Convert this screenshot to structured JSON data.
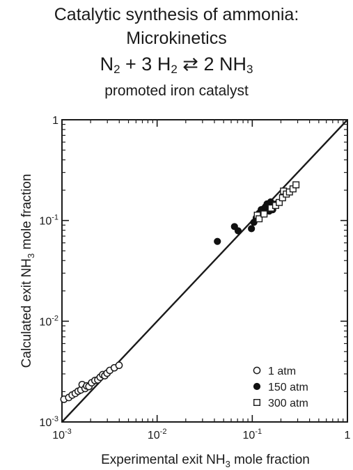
{
  "header": {
    "title_line1": "Catalytic synthesis of ammonia:",
    "title_line2": "Microkinetics",
    "equation": {
      "n2": "N",
      "n2_sub": "2",
      "plus": " + 3 H",
      "h2_sub": "2",
      "arrow": " ⇄ ",
      "nh3": "2 NH",
      "nh3_sub": "3"
    },
    "subtitle": "promoted iron catalyst"
  },
  "chart_data": {
    "type": "scatter",
    "log_x": true,
    "log_y": true,
    "xlim": [
      0.001,
      1
    ],
    "ylim": [
      0.001,
      1
    ],
    "x_ticks": [
      {
        "value": 0.001,
        "base": "10",
        "exp": "-3"
      },
      {
        "value": 0.01,
        "base": "10",
        "exp": "-2"
      },
      {
        "value": 0.1,
        "base": "10",
        "exp": "-1"
      },
      {
        "value": 1,
        "base": "1",
        "exp": ""
      }
    ],
    "y_ticks": [
      {
        "value": 0.001,
        "base": "10",
        "exp": "-3"
      },
      {
        "value": 0.01,
        "base": "10",
        "exp": "-2"
      },
      {
        "value": 0.1,
        "base": "10",
        "exp": "-1"
      },
      {
        "value": 1,
        "base": "1",
        "exp": ""
      }
    ],
    "xlabel_pre": "Experimental exit NH",
    "xlabel_sub": "3",
    "xlabel_post": " mole fraction",
    "ylabel_pre": "Calculated exit NH",
    "ylabel_sub": "3",
    "ylabel_post": " mole fraction",
    "diagonal": {
      "x": [
        0.001,
        1
      ],
      "y": [
        0.001,
        1
      ]
    },
    "legend_position": "bottom-right",
    "series": [
      {
        "name": "1 atm",
        "marker": "open-circle",
        "points": [
          [
            0.00105,
            0.00168
          ],
          [
            0.00118,
            0.00175
          ],
          [
            0.00128,
            0.00185
          ],
          [
            0.00138,
            0.00192
          ],
          [
            0.00148,
            0.00202
          ],
          [
            0.00158,
            0.00208
          ],
          [
            0.00163,
            0.00235
          ],
          [
            0.00175,
            0.00215
          ],
          [
            0.00182,
            0.00228
          ],
          [
            0.00192,
            0.00225
          ],
          [
            0.00205,
            0.00245
          ],
          [
            0.00222,
            0.00258
          ],
          [
            0.00238,
            0.00262
          ],
          [
            0.00252,
            0.00278
          ],
          [
            0.00268,
            0.00295
          ],
          [
            0.00282,
            0.00288
          ],
          [
            0.00298,
            0.00305
          ],
          [
            0.00318,
            0.00325
          ],
          [
            0.00355,
            0.00345
          ],
          [
            0.00398,
            0.00365
          ]
        ]
      },
      {
        "name": "150 atm",
        "marker": "filled-circle",
        "points": [
          [
            0.043,
            0.062
          ],
          [
            0.065,
            0.087
          ],
          [
            0.071,
            0.079
          ],
          [
            0.098,
            0.083
          ],
          [
            0.104,
            0.096
          ],
          [
            0.11,
            0.106
          ],
          [
            0.118,
            0.118
          ],
          [
            0.124,
            0.128
          ],
          [
            0.132,
            0.131
          ],
          [
            0.138,
            0.137
          ],
          [
            0.143,
            0.146
          ],
          [
            0.151,
            0.124
          ],
          [
            0.156,
            0.153
          ],
          [
            0.164,
            0.128
          ],
          [
            0.178,
            0.146
          ]
        ]
      },
      {
        "name": "300 atm",
        "marker": "open-square",
        "points": [
          [
            0.113,
            0.113
          ],
          [
            0.118,
            0.104
          ],
          [
            0.133,
            0.116
          ],
          [
            0.158,
            0.133
          ],
          [
            0.176,
            0.141
          ],
          [
            0.192,
            0.151
          ],
          [
            0.208,
            0.168
          ],
          [
            0.213,
            0.196
          ],
          [
            0.228,
            0.183
          ],
          [
            0.246,
            0.192
          ],
          [
            0.268,
            0.206
          ],
          [
            0.288,
            0.226
          ]
        ]
      }
    ]
  }
}
